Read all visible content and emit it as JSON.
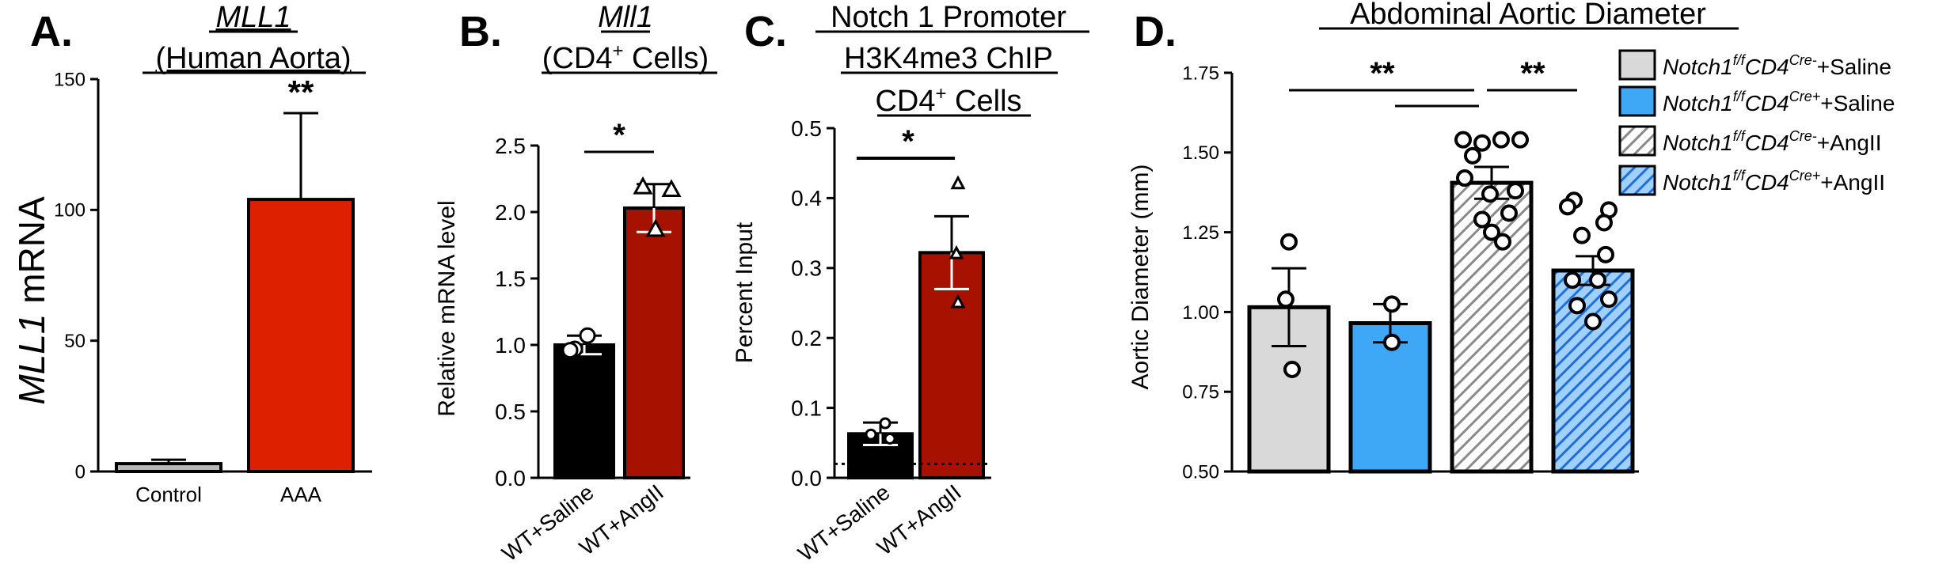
{
  "colors": {
    "black": "#000000",
    "red": "#dd2000",
    "darkred": "#a71100",
    "grey": "#b8b8b8",
    "lightgrey": "#d9d9d9",
    "blue": "#3ea8f7",
    "hatch_grey": "#bdbdbd",
    "hatch_blue": "#1f6fd6"
  },
  "chart_data": [
    {
      "panel": "A.",
      "type": "bar",
      "title_line1": "MLL1",
      "title_line2": "(Human Aorta)",
      "ylabel_italic": "MLL1",
      "ylabel_rest": " mRNA",
      "ylim": [
        0,
        150
      ],
      "yticks": [
        "0",
        "50",
        "100",
        "150"
      ],
      "categories": [
        "Control",
        "AAA"
      ],
      "values": [
        3,
        104
      ],
      "errors": [
        1.5,
        33
      ],
      "significance": [
        {
          "label": "**",
          "bar": 1
        }
      ]
    },
    {
      "panel": "B.",
      "type": "bar",
      "title_line1": "Mll1",
      "title_line2": "(CD4",
      "title_sup": "+",
      "title_line2_end": " Cells)",
      "ylabel": "Relative mRNA level",
      "ylim": [
        0,
        2.5
      ],
      "yticks": [
        "0.0",
        "0.5",
        "1.0",
        "1.5",
        "2.0",
        "2.5"
      ],
      "categories": [
        "WT+Saline",
        "WT+AngII"
      ],
      "values": [
        1.0,
        2.03
      ],
      "errors": [
        0.07,
        0.18
      ],
      "points": [
        [
          0.97,
          1.07,
          0.96
        ],
        [
          2.17,
          2.19,
          1.87
        ]
      ],
      "significance": [
        {
          "label": "*",
          "from": 0,
          "to": 1
        }
      ]
    },
    {
      "panel": "C.",
      "type": "bar",
      "title_line1": "Notch 1 Promoter",
      "title_line2": "H3K4me3 ChIP",
      "title_line3": "CD4",
      "title_sup": "+",
      "title_line3_end": " Cells",
      "ylabel": "Percent Input",
      "ylim": [
        0,
        0.5
      ],
      "yticks": [
        "0.0",
        "0.1",
        "0.2",
        "0.3",
        "0.4",
        "0.5"
      ],
      "categories": [
        "WT+Saline",
        "WT+AngII"
      ],
      "values": [
        0.063,
        0.322
      ],
      "errors": [
        0.016,
        0.052
      ],
      "points": [
        [
          0.078,
          0.062,
          0.056
        ],
        [
          0.42,
          0.32,
          0.25
        ]
      ],
      "baseline": 0.02,
      "significance": [
        {
          "label": "*",
          "from": 0,
          "to": 1
        }
      ]
    },
    {
      "panel": "D.",
      "type": "bar",
      "title": "Abdominal Aortic Diameter",
      "ylabel": "Aortic Diameter (mm)",
      "ylim": [
        0.5,
        1.75
      ],
      "yticks": [
        "0.50",
        "0.75",
        "1.00",
        "1.25",
        "1.50",
        "1.75"
      ],
      "series_names": [
        {
          "pre": "Notch1",
          "sup1": "f/f",
          "mid": "CD4",
          "sup2": "Cre-",
          "post": "+Saline"
        },
        {
          "pre": "Notch1",
          "sup1": "f/f",
          "mid": "CD4",
          "sup2": "Cre+",
          "post": "+Saline"
        },
        {
          "pre": "Notch1",
          "sup1": "f/f",
          "mid": "CD4",
          "sup2": "Cre-",
          "post": "+AngII"
        },
        {
          "pre": "Notch1",
          "sup1": "f/f",
          "mid": "CD4",
          "sup2": "Cre+",
          "post": "+AngII"
        }
      ],
      "values": [
        1.015,
        0.965,
        1.405,
        1.13
      ],
      "errors": [
        0.122,
        0.06,
        0.05,
        0.045
      ],
      "points": [
        [
          1.22,
          1.04,
          0.82
        ],
        [
          1.025,
          0.905
        ],
        [
          1.54,
          1.53,
          1.54,
          1.54,
          1.49,
          1.42,
          1.38,
          1.37,
          1.29,
          1.31,
          1.25,
          1.22
        ],
        [
          1.35,
          1.32,
          1.33,
          1.28,
          1.24,
          1.18,
          1.1,
          1.1,
          1.04,
          1.02,
          0.97
        ]
      ],
      "significance": [
        {
          "label": "**",
          "from": 0,
          "to": 2
        },
        {
          "label": "**",
          "from": 2,
          "to": 3
        },
        {
          "label": "",
          "from": 1,
          "to": 2
        }
      ]
    }
  ]
}
